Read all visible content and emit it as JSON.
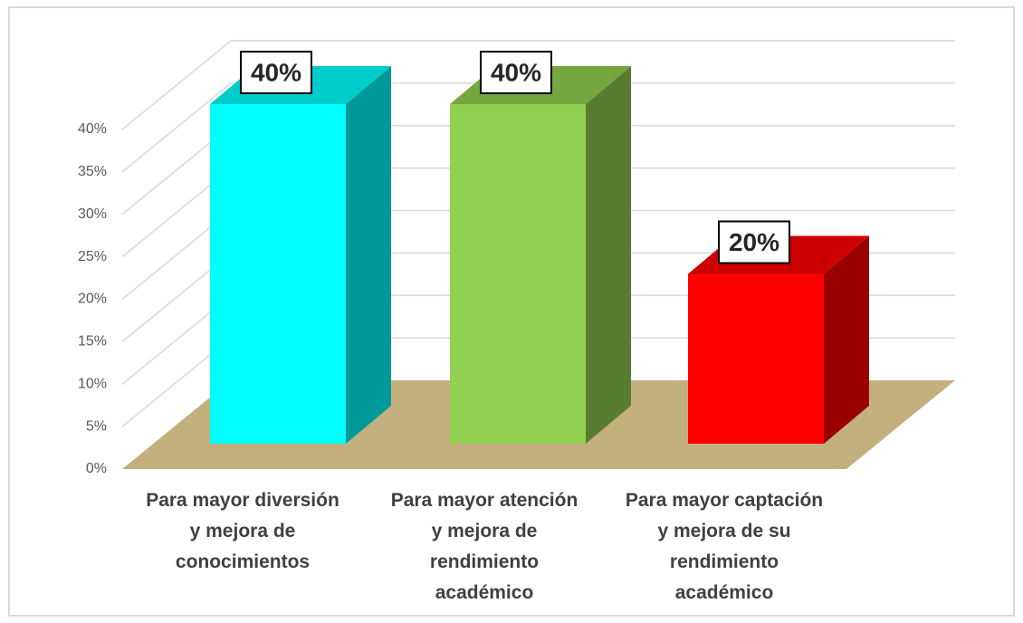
{
  "chart_data": {
    "type": "bar3d",
    "categories": [
      "Para mayor diversión\ny mejora de\nconocimientos",
      "Para mayor atención\ny mejora de\nrendimiento\nacadémico",
      "Para mayor captación\ny mejora de su\nrendimiento\nacadémico"
    ],
    "values": [
      40,
      40,
      20
    ],
    "value_labels": [
      "40%",
      "40%",
      "20%"
    ],
    "colors": [
      "#00ffff",
      "#92d050",
      "#ff0000"
    ],
    "ylim": [
      0,
      40
    ],
    "yticks": [
      {
        "value": 0,
        "label": "0%"
      },
      {
        "value": 5,
        "label": "5%"
      },
      {
        "value": 10,
        "label": "10%"
      },
      {
        "value": 15,
        "label": "15%"
      },
      {
        "value": 20,
        "label": "20%"
      },
      {
        "value": 25,
        "label": "25%"
      },
      {
        "value": 30,
        "label": "30%"
      },
      {
        "value": 35,
        "label": "35%"
      },
      {
        "value": 40,
        "label": "40%"
      }
    ],
    "grid": true
  }
}
